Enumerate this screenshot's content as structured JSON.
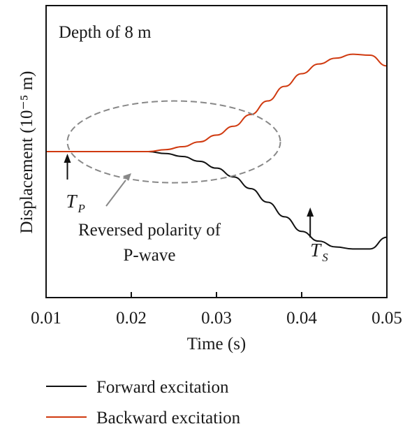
{
  "chart_data": {
    "type": "line",
    "title": "Depth of 8 m",
    "xlabel": "Time (s)",
    "ylabel": "Displacement (10⁻⁵ m)",
    "xlim": [
      0.01,
      0.05
    ],
    "ylim": [
      -1.5,
      1.5
    ],
    "x_ticks": [
      "0.01",
      "0.02",
      "0.03",
      "0.04",
      "0.05"
    ],
    "grid": false,
    "legend_position": "bottom",
    "series": [
      {
        "name": "Forward excitation",
        "color": "#111111",
        "x": [
          0.0,
          0.01,
          0.012,
          0.014,
          0.016,
          0.018,
          0.02,
          0.022,
          0.024,
          0.026,
          0.028,
          0.03,
          0.032,
          0.034,
          0.036,
          0.038,
          0.04,
          0.042,
          0.044,
          0.046,
          0.048,
          0.05
        ],
        "y": [
          0,
          0,
          0,
          0,
          0,
          0,
          0,
          0,
          -0.02,
          -0.05,
          -0.1,
          -0.17,
          -0.26,
          -0.38,
          -0.52,
          -0.67,
          -0.82,
          -0.92,
          -0.98,
          -1.0,
          -1.0,
          -0.88
        ]
      },
      {
        "name": "Backward excitation",
        "color": "#d03a10",
        "x": [
          0.0,
          0.01,
          0.012,
          0.014,
          0.016,
          0.018,
          0.02,
          0.022,
          0.024,
          0.026,
          0.028,
          0.03,
          0.032,
          0.034,
          0.036,
          0.038,
          0.04,
          0.042,
          0.044,
          0.046,
          0.048,
          0.05
        ],
        "y": [
          0,
          0,
          0,
          0,
          0,
          0,
          0,
          0,
          0.02,
          0.05,
          0.1,
          0.17,
          0.26,
          0.38,
          0.52,
          0.67,
          0.8,
          0.9,
          0.96,
          1.0,
          0.99,
          0.88
        ]
      }
    ],
    "annotations": {
      "tp_label": "T",
      "tp_sub": "P",
      "ts_label": "T",
      "ts_sub": "S",
      "tp_time": 0.0125,
      "ts_time": 0.041,
      "note_line1": "Reversed polarity of",
      "note_line2": "P-wave",
      "ellipse_center": [
        0.025,
        0.1
      ],
      "ellipse_radii": [
        0.0125,
        0.42
      ]
    }
  }
}
